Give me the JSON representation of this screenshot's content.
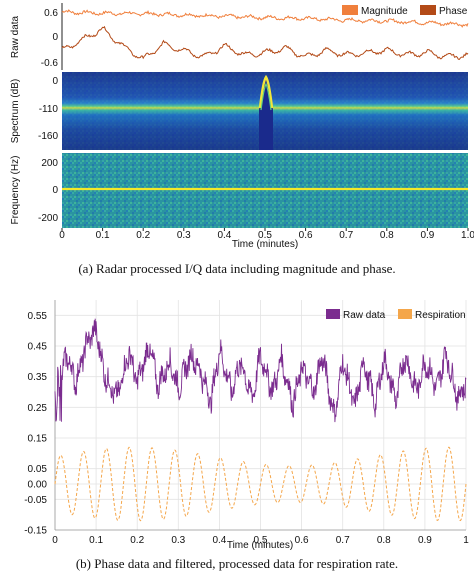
{
  "figure": {
    "caption_a": "(a)  Radar processed I/Q data including magnitude and phase.",
    "caption_b": "(b)  Phase data and filtered, processed data for respiration rate."
  },
  "chart_data": [
    {
      "type": "line",
      "panel": "raw-data",
      "ylabel": "Raw data",
      "yticks": [
        "0.6",
        "0",
        "-0.6"
      ],
      "xlim": [
        0,
        1.0
      ],
      "series": [
        {
          "name": "Magnitude",
          "color": "#f07f3c",
          "baseline": 0.28,
          "trend": -0.04,
          "x": [
            0,
            0.1,
            0.2,
            0.3,
            0.4,
            0.5,
            0.6,
            0.7,
            0.8,
            0.9,
            1.0
          ],
          "y": [
            0.59,
            0.56,
            0.55,
            0.52,
            0.49,
            0.46,
            0.44,
            0.4,
            0.38,
            0.34,
            0.3
          ]
        },
        {
          "name": "Phase",
          "color": "#b34a17",
          "x": [
            0,
            0.05,
            0.1,
            0.15,
            0.2,
            0.25,
            0.3,
            0.35,
            0.4,
            0.45,
            0.5,
            0.55,
            0.6,
            0.65,
            0.7,
            0.75,
            0.8,
            0.85,
            0.9,
            0.95,
            1.0
          ],
          "y": [
            -0.3,
            -0.05,
            0.2,
            -0.2,
            -0.5,
            -0.15,
            -0.3,
            -0.45,
            -0.2,
            -0.4,
            -0.35,
            -0.25,
            -0.45,
            -0.3,
            -0.4,
            -0.35,
            -0.3,
            -0.4,
            -0.35,
            -0.45,
            -0.4
          ]
        }
      ],
      "legend": "top-right"
    },
    {
      "type": "heatmap",
      "panel": "spectrum",
      "ylabel": "Spectrum (dB)",
      "yticks": [
        "0",
        "-110",
        "-160"
      ],
      "xlim": [
        0,
        1.0
      ],
      "colormap": [
        "#1b2a8f",
        "#2162c8",
        "#1ab3b0",
        "#8fd35a",
        "#f7e41c"
      ],
      "notes_peak_x": 0.52
    },
    {
      "type": "heatmap",
      "panel": "frequency",
      "ylabel": "Frequency (Hz)",
      "yticks": [
        "200",
        "0",
        "-200"
      ],
      "xlabel": "Time (minutes)",
      "xticks": [
        "0",
        "0.1",
        "0.2",
        "0.3",
        "0.4",
        "0.5",
        "0.6",
        "0.7",
        "0.8",
        "0.9",
        "1.0"
      ],
      "xlim": [
        0,
        1.0
      ],
      "ylim": [
        -250,
        250
      ],
      "line_at_y": 0
    },
    {
      "type": "line",
      "panel": "phase-respiration",
      "xlabel": "Time (minutes)",
      "xticks": [
        "0",
        "0.1",
        "0.2",
        "0.3",
        "0.4",
        "0.5",
        "0.6",
        "0.7",
        "0.8",
        "0.9",
        "1"
      ],
      "yticks": [
        "0.55",
        "0.45",
        "0.35",
        "0.25",
        "0.15",
        "0.05",
        "0.00",
        "-0.05",
        "-0.15"
      ],
      "xlim": [
        0,
        1.0
      ],
      "ylim": [
        -0.15,
        0.6
      ],
      "series": [
        {
          "name": "Raw data",
          "color": "#7b2c8f",
          "x": [
            0,
            0.03,
            0.05,
            0.08,
            0.1,
            0.12,
            0.15,
            0.18,
            0.2,
            0.23,
            0.25,
            0.28,
            0.3,
            0.33,
            0.35,
            0.38,
            0.4,
            0.43,
            0.45,
            0.48,
            0.5,
            0.53,
            0.55,
            0.58,
            0.6,
            0.63,
            0.65,
            0.68,
            0.7,
            0.73,
            0.75,
            0.78,
            0.8,
            0.83,
            0.85,
            0.88,
            0.9,
            0.93,
            0.95,
            0.98,
            1.0
          ],
          "y": [
            0.3,
            0.42,
            0.33,
            0.47,
            0.5,
            0.36,
            0.28,
            0.43,
            0.33,
            0.45,
            0.32,
            0.4,
            0.31,
            0.42,
            0.38,
            0.27,
            0.44,
            0.3,
            0.4,
            0.28,
            0.42,
            0.3,
            0.41,
            0.26,
            0.38,
            0.3,
            0.42,
            0.22,
            0.4,
            0.25,
            0.4,
            0.26,
            0.41,
            0.27,
            0.42,
            0.3,
            0.4,
            0.31,
            0.43,
            0.28,
            0.33
          ]
        },
        {
          "name": "Respiration",
          "color": "#f4a64a",
          "center": 0.0,
          "amp": 0.12,
          "cycles": 18
        }
      ],
      "legend": "top-right"
    }
  ]
}
